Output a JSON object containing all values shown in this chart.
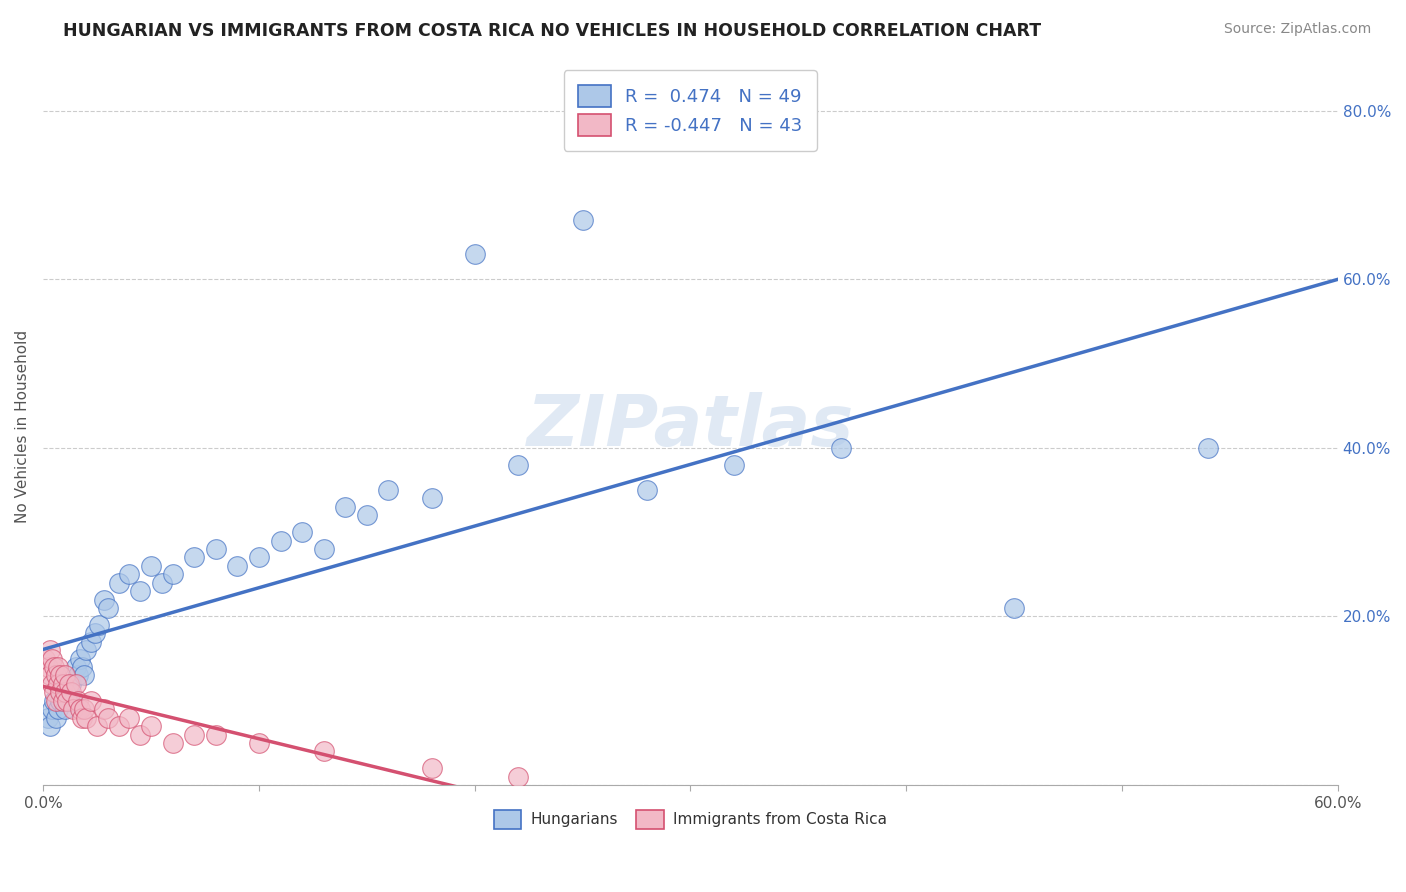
{
  "title": "HUNGARIAN VS IMMIGRANTS FROM COSTA RICA NO VEHICLES IN HOUSEHOLD CORRELATION CHART",
  "source": "Source: ZipAtlas.com",
  "ylabel_label": "No Vehicles in Household",
  "xlim": [
    0.0,
    0.6
  ],
  "ylim": [
    0.0,
    0.85
  ],
  "r_hungarian": 0.474,
  "n_hungarian": 49,
  "r_costa_rica": -0.447,
  "n_costa_rica": 43,
  "hungarian_color": "#adc8e8",
  "costa_rica_color": "#f2b8c6",
  "trend_hungarian_color": "#4472c4",
  "trend_costa_rica_color": "#d45070",
  "legend_label_hungarian": "Hungarians",
  "legend_label_costa_rica": "Immigrants from Costa Rica",
  "watermark": "ZIPatlas",
  "hungarian_x": [
    0.002,
    0.003,
    0.004,
    0.005,
    0.006,
    0.007,
    0.008,
    0.009,
    0.01,
    0.011,
    0.012,
    0.013,
    0.014,
    0.015,
    0.016,
    0.017,
    0.018,
    0.019,
    0.02,
    0.022,
    0.024,
    0.026,
    0.028,
    0.03,
    0.035,
    0.04,
    0.045,
    0.05,
    0.055,
    0.06,
    0.07,
    0.08,
    0.09,
    0.1,
    0.11,
    0.12,
    0.13,
    0.14,
    0.15,
    0.16,
    0.18,
    0.2,
    0.22,
    0.25,
    0.28,
    0.32,
    0.37,
    0.45,
    0.54
  ],
  "hungarian_y": [
    0.08,
    0.07,
    0.09,
    0.1,
    0.08,
    0.09,
    0.1,
    0.11,
    0.09,
    0.1,
    0.11,
    0.12,
    0.1,
    0.14,
    0.13,
    0.15,
    0.14,
    0.13,
    0.16,
    0.17,
    0.18,
    0.19,
    0.22,
    0.21,
    0.24,
    0.25,
    0.23,
    0.26,
    0.24,
    0.25,
    0.27,
    0.28,
    0.26,
    0.27,
    0.29,
    0.3,
    0.28,
    0.33,
    0.32,
    0.35,
    0.34,
    0.63,
    0.38,
    0.67,
    0.35,
    0.38,
    0.4,
    0.21,
    0.4
  ],
  "costa_rica_x": [
    0.001,
    0.002,
    0.003,
    0.003,
    0.004,
    0.004,
    0.005,
    0.005,
    0.006,
    0.006,
    0.007,
    0.007,
    0.008,
    0.008,
    0.009,
    0.009,
    0.01,
    0.01,
    0.011,
    0.012,
    0.013,
    0.014,
    0.015,
    0.016,
    0.017,
    0.018,
    0.019,
    0.02,
    0.022,
    0.025,
    0.028,
    0.03,
    0.035,
    0.04,
    0.045,
    0.05,
    0.06,
    0.07,
    0.08,
    0.1,
    0.13,
    0.18,
    0.22
  ],
  "costa_rica_y": [
    0.15,
    0.14,
    0.16,
    0.13,
    0.15,
    0.12,
    0.14,
    0.11,
    0.13,
    0.1,
    0.14,
    0.12,
    0.13,
    0.11,
    0.12,
    0.1,
    0.11,
    0.13,
    0.1,
    0.12,
    0.11,
    0.09,
    0.12,
    0.1,
    0.09,
    0.08,
    0.09,
    0.08,
    0.1,
    0.07,
    0.09,
    0.08,
    0.07,
    0.08,
    0.06,
    0.07,
    0.05,
    0.06,
    0.06,
    0.05,
    0.04,
    0.02,
    0.01
  ]
}
